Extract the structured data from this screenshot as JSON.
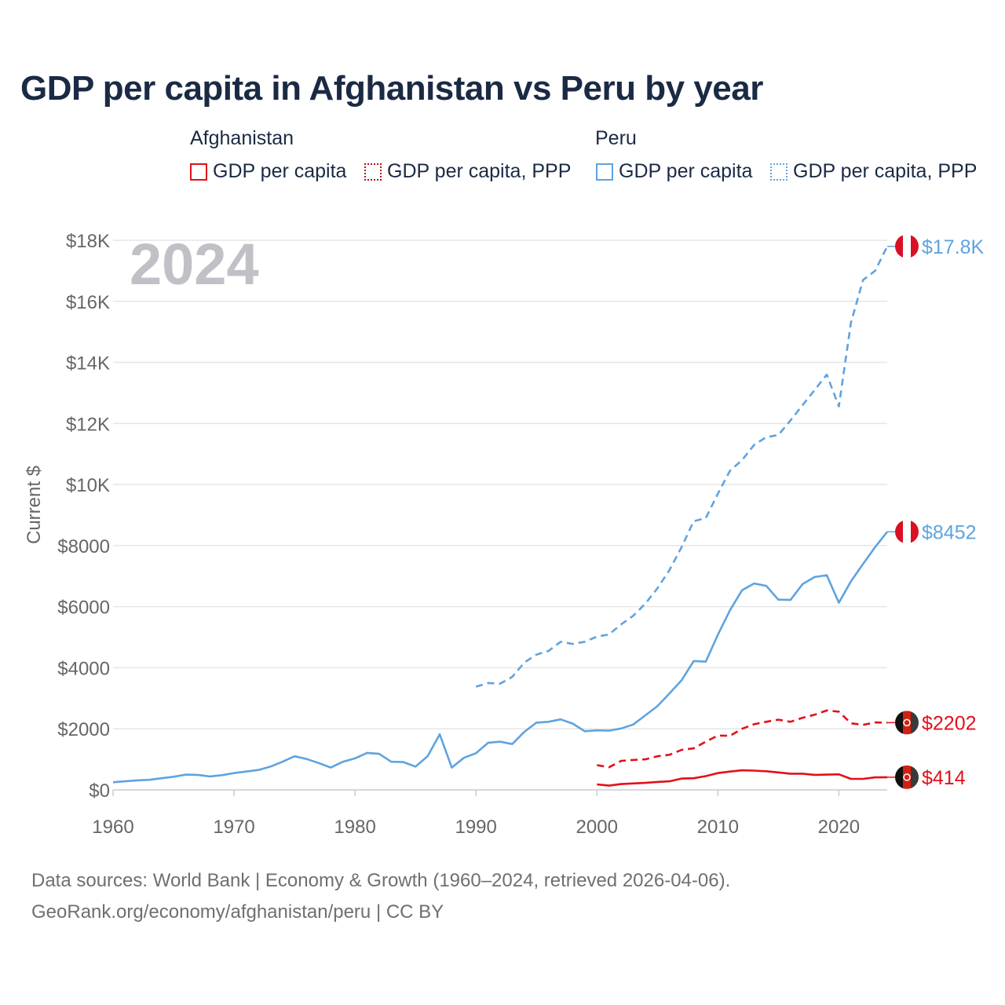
{
  "title": "GDP per capita in Afghanistan vs Peru by year",
  "legend": {
    "groups": [
      {
        "name": "Afghanistan",
        "items": [
          "GDP per capita",
          "GDP per capita, PPP"
        ]
      },
      {
        "name": "Peru",
        "items": [
          "GDP per capita",
          "GDP per capita, PPP"
        ]
      }
    ]
  },
  "colors": {
    "afghanistan": "#e3101a",
    "peru": "#5fa3e0",
    "grid": "#e6e6e6",
    "axis_text": "#666666"
  },
  "footer": {
    "line1": "Data sources: World Bank | Economy & Growth (1960–2024, retrieved 2026-04-06).",
    "line2": "GeoRank.org/economy/afghanistan/peru | CC BY"
  },
  "chart_data": {
    "type": "line",
    "title": "GDP per capita in Afghanistan vs Peru by year",
    "year_label": "2024",
    "ylabel": "Current $",
    "xlabel": "",
    "xlim": [
      1960,
      2024
    ],
    "ylim": [
      0,
      18000
    ],
    "x_ticks": [
      1960,
      1970,
      1980,
      1990,
      2000,
      2010,
      2020
    ],
    "x_tick_labels": [
      "1960",
      "1970",
      "1980",
      "1990",
      "2000",
      "2010",
      "2020"
    ],
    "y_ticks": [
      0,
      2000,
      4000,
      6000,
      8000,
      10000,
      12000,
      14000,
      16000,
      18000
    ],
    "y_tick_labels": [
      "$0",
      "$2000",
      "$4000",
      "$6000",
      "$8000",
      "$10K",
      "$12K",
      "$14K",
      "$16K",
      "$18K"
    ],
    "series": [
      {
        "name": "Peru GDP per capita",
        "country": "Peru",
        "style": "solid",
        "color": "#5fa3e0",
        "end_label": "$8452",
        "flag": "peru",
        "x": [
          1960,
          1961,
          1962,
          1963,
          1964,
          1965,
          1966,
          1967,
          1968,
          1969,
          1970,
          1971,
          1972,
          1973,
          1974,
          1975,
          1976,
          1977,
          1978,
          1979,
          1980,
          1981,
          1982,
          1983,
          1984,
          1985,
          1986,
          1987,
          1988,
          1989,
          1990,
          1991,
          1992,
          1993,
          1994,
          1995,
          1996,
          1997,
          1998,
          1999,
          2000,
          2001,
          2002,
          2003,
          2004,
          2005,
          2006,
          2007,
          2008,
          2009,
          2010,
          2011,
          2012,
          2013,
          2014,
          2015,
          2016,
          2017,
          2018,
          2019,
          2020,
          2021,
          2022,
          2023,
          2024
        ],
        "values": [
          250,
          280,
          310,
          330,
          380,
          430,
          500,
          490,
          440,
          480,
          550,
          600,
          650,
          760,
          920,
          1100,
          1010,
          880,
          730,
          920,
          1030,
          1210,
          1180,
          920,
          910,
          760,
          1100,
          1820,
          730,
          1050,
          1200,
          1540,
          1580,
          1500,
          1900,
          2200,
          2230,
          2310,
          2170,
          1920,
          1950,
          1940,
          2010,
          2140,
          2440,
          2740,
          3160,
          3590,
          4220,
          4200,
          5080,
          5880,
          6540,
          6760,
          6680,
          6230,
          6220,
          6740,
          6970,
          7030,
          6130,
          6830,
          7400,
          7950,
          8452
        ]
      },
      {
        "name": "Peru GDP per capita, PPP",
        "country": "Peru",
        "style": "dashed",
        "color": "#5fa3e0",
        "end_label": "$17.8K",
        "flag": "peru",
        "x": [
          1990,
          1991,
          1992,
          1993,
          1994,
          1995,
          1996,
          1997,
          1998,
          1999,
          2000,
          2001,
          2002,
          2003,
          2004,
          2005,
          2006,
          2007,
          2008,
          2009,
          2010,
          2011,
          2012,
          2013,
          2014,
          2015,
          2016,
          2017,
          2018,
          2019,
          2020,
          2021,
          2022,
          2023,
          2024
        ],
        "values": [
          3380,
          3500,
          3480,
          3700,
          4170,
          4430,
          4550,
          4850,
          4780,
          4850,
          5020,
          5090,
          5420,
          5700,
          6100,
          6600,
          7200,
          7950,
          8800,
          8900,
          9700,
          10450,
          10800,
          11300,
          11550,
          11620,
          12100,
          12600,
          13100,
          13600,
          12560,
          15300,
          16700,
          17000,
          17800
        ]
      },
      {
        "name": "Afghanistan GDP per capita",
        "country": "Afghanistan",
        "style": "solid",
        "color": "#e3101a",
        "end_label": "$414",
        "flag": "afghanistan",
        "x": [
          2000,
          2001,
          2002,
          2003,
          2004,
          2005,
          2006,
          2007,
          2008,
          2009,
          2010,
          2011,
          2012,
          2013,
          2014,
          2015,
          2016,
          2017,
          2018,
          2019,
          2020,
          2021,
          2022,
          2023,
          2024
        ],
        "values": [
          180,
          140,
          190,
          210,
          230,
          260,
          280,
          370,
          380,
          450,
          550,
          600,
          640,
          630,
          610,
          570,
          530,
          530,
          490,
          500,
          510,
          360,
          360,
          410,
          414
        ]
      },
      {
        "name": "Afghanistan GDP per capita, PPP",
        "country": "Afghanistan",
        "style": "dashed",
        "color": "#e3101a",
        "end_label": "$2202",
        "flag": "afghanistan",
        "x": [
          2000,
          2001,
          2002,
          2003,
          2004,
          2005,
          2006,
          2007,
          2008,
          2009,
          2010,
          2011,
          2012,
          2013,
          2014,
          2015,
          2016,
          2017,
          2018,
          2019,
          2020,
          2021,
          2022,
          2023,
          2024
        ],
        "values": [
          810,
          740,
          950,
          980,
          1000,
          1100,
          1150,
          1310,
          1360,
          1580,
          1780,
          1770,
          2000,
          2150,
          2230,
          2300,
          2230,
          2360,
          2460,
          2600,
          2560,
          2180,
          2130,
          2210,
          2202
        ]
      }
    ]
  }
}
